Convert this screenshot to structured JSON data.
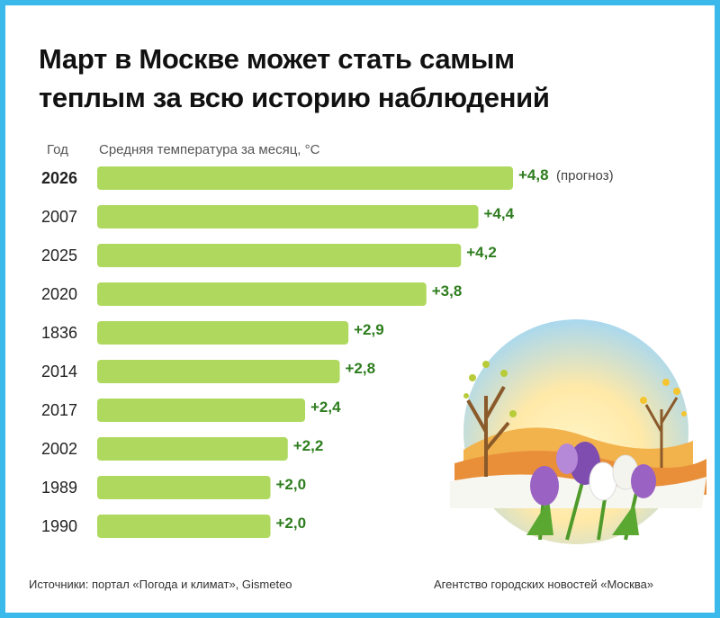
{
  "title_line1": "Март в Москве может стать самым",
  "title_line2": "теплым за всю историю наблюдений",
  "chart_data": {
    "type": "bar",
    "orientation": "horizontal",
    "title": "Март в Москве может стать самым теплым за всю историю наблюдений",
    "xlabel": "Средняя температура за месяц, °C",
    "ylabel": "Год",
    "categories": [
      "2026",
      "2007",
      "2025",
      "2020",
      "1836",
      "2014",
      "2017",
      "2002",
      "1989",
      "1990"
    ],
    "values": [
      4.8,
      4.4,
      4.2,
      3.8,
      2.9,
      2.8,
      2.4,
      2.2,
      2.0,
      2.0
    ],
    "labels": [
      "+4,8",
      "+4,4",
      "+4,2",
      "+3,8",
      "+2,9",
      "+2,8",
      "+2,4",
      "+2,2",
      "+2,0",
      "+2,0"
    ],
    "annotations": [
      {
        "category": "2026",
        "text": "(прогноз)"
      }
    ],
    "xlim": [
      0,
      4.8
    ],
    "bar_color": "#aed95e",
    "label_color": "#2e7d1e"
  },
  "footer": {
    "sources": "Источники: портал «Погода и климат», Gismeteo",
    "agency": "Агентство городских новостей «Москва»"
  },
  "colors": {
    "border": "#3bb9ea"
  }
}
